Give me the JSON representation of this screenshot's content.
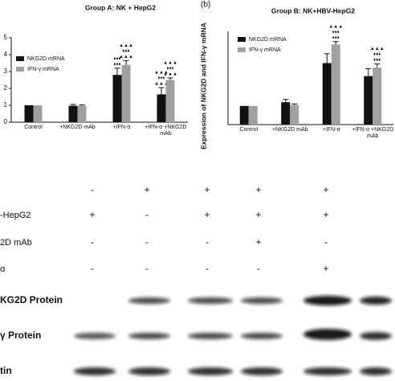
{
  "chart_data": [
    {
      "type": "bar",
      "title": "Group A: NK + HepG2",
      "categories": [
        "Control",
        "+NKG2D mAb",
        "+IFN-α",
        "+IFN-α +NKG2D mAb"
      ],
      "series": [
        {
          "name": "NKG2D mRNA",
          "color": "#111111",
          "values": [
            1,
            0.97,
            2.8,
            1.65
          ],
          "errors": [
            0,
            0.08,
            0.4,
            0.4
          ],
          "symbols": [
            null,
            null,
            [
              "♦♦♦",
              "♦♦♦"
            ],
            [
              "▲▲▲",
              "♦♦♦",
              "▲▲▲"
            ]
          ]
        },
        {
          "name": "IFN-γ mRNA",
          "color": "#a0a0a0",
          "values": [
            1,
            0.97,
            3.4,
            2.5
          ],
          "errors": [
            0,
            0.05,
            0.25,
            0.12
          ],
          "symbols": [
            null,
            null,
            [
              "▲▲▲",
              "♦♦♦",
              "▲▲▲"
            ],
            [
              "▲▲▲",
              "♦♦♦",
              "▲▲▲"
            ]
          ]
        }
      ],
      "ylim": [
        0,
        5
      ],
      "yticks": [
        0,
        1,
        2,
        3,
        4,
        5
      ]
    },
    {
      "type": "bar",
      "panel": "(b)",
      "title": "Group B: NK+HBV-HepG2",
      "y_label": "Expression of NKG2D and IFN-γ mRNA",
      "categories": [
        "Control",
        "+NKG2D mAb",
        "+IFN-α",
        "+IFN-α +NKG2D mAb"
      ],
      "series": [
        {
          "name": "NKG2D mRNA",
          "color": "#111111",
          "values": [
            1,
            1.2,
            3.3,
            2.6
          ],
          "errors": [
            0,
            0.15,
            0.5,
            0.4
          ],
          "symbols": [
            null,
            null,
            null,
            null
          ]
        },
        {
          "name": "IFN-γ mRNA",
          "color": "#a0a0a0",
          "values": [
            1,
            1.05,
            4.3,
            3.05
          ],
          "errors": [
            0,
            0.06,
            0.15,
            0.2
          ],
          "symbols": [
            null,
            null,
            [
              "▲▲▲",
              "♦♦♦",
              "♦♦♦"
            ],
            [
              "▲▲▲",
              "♦♦♦",
              "♦♦♦"
            ]
          ]
        }
      ],
      "ylim": [
        0,
        5
      ]
    }
  ],
  "blot": {
    "treatment_rows": [
      {
        "signs": [
          "-",
          "+",
          "+",
          "+",
          "+"
        ]
      },
      {
        "label": "-HepG2",
        "signs": [
          "+",
          "-",
          "+",
          "+",
          "+"
        ]
      },
      {
        "label": "2D mAb",
        "signs": [
          "-",
          "-",
          "-",
          "+",
          "-"
        ]
      },
      {
        "label": "α",
        "signs": [
          "-",
          "-",
          "-",
          "-",
          "+"
        ]
      }
    ],
    "bands": [
      "KG2D Protein",
      "γ  Protein",
      "tin"
    ]
  }
}
